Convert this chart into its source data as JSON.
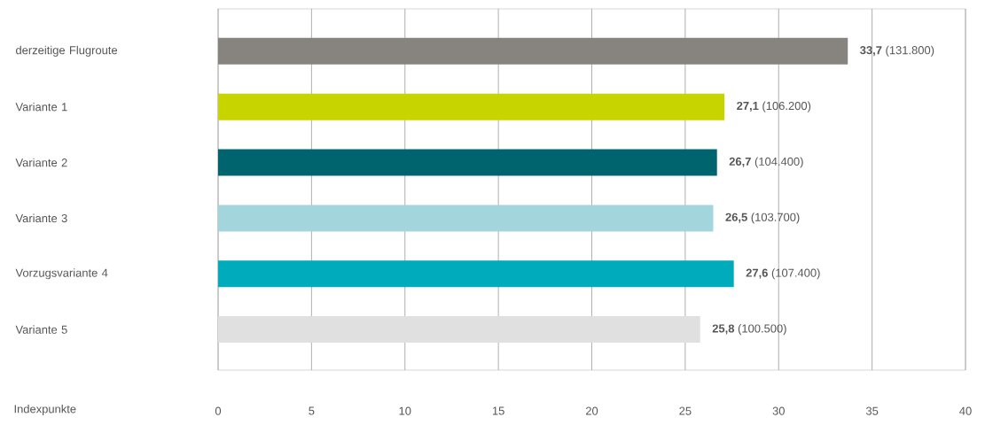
{
  "chart_data": {
    "type": "bar",
    "orientation": "horizontal",
    "xlabel": "Indexpunkte",
    "categories": [
      "derzeitige Flugroute",
      "Variante 1",
      "Variante 2",
      "Variante 3",
      "Vorzugsvariante 4",
      "Variante 5"
    ],
    "values": [
      33.7,
      27.1,
      26.7,
      26.5,
      27.6,
      25.8
    ],
    "colors": [
      "#878480",
      "#c8d400",
      "#00646e",
      "#a3d5dc",
      "#00abbb",
      "#e0e0e0"
    ],
    "value_labels": [
      "**33,7** (131.800)",
      "**27,1** (106.200)",
      "**26,7** (104.400)",
      "**26,5** (103.700)",
      "**27,6** (107.400)",
      "**25,8** (100.500)"
    ],
    "xlim": [
      0,
      40
    ],
    "xticks": [
      0,
      5,
      10,
      15,
      20,
      25,
      30,
      35,
      40
    ],
    "grid": "x"
  }
}
